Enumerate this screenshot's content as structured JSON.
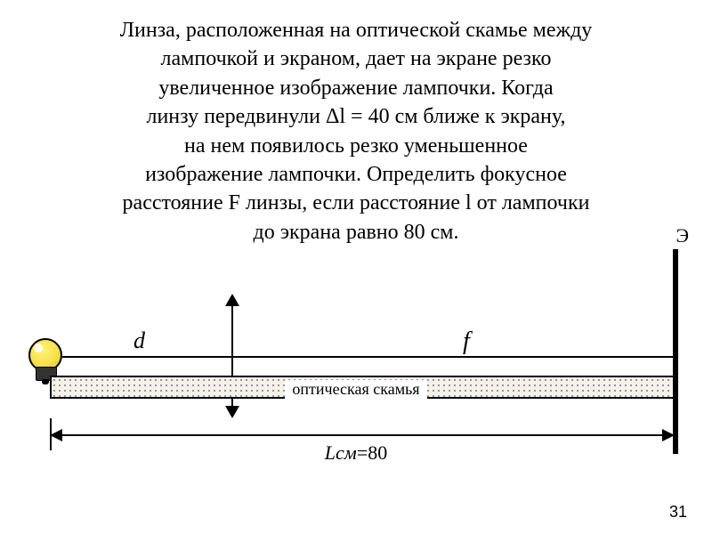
{
  "problem": {
    "lines": [
      "Линза, расположенная на оптической скамье между",
      "лампочкой и экраном, дает на экране резко",
      "увеличенное изображение лампочки. Когда",
      "линзу передвинули Δl = 40 см ближе к экрану,",
      "на нем появилось резко уменьшенное",
      "изображение лампочки. Определить фокусное",
      "расстояние F линзы, если расстояние l от лампочки",
      "до экрана равно 80 см."
    ]
  },
  "diagram": {
    "screen_label": "Э",
    "d_label": "d",
    "f_label": "f",
    "bench_label": "оптическая скамья",
    "bottom_dim_prefix": "L",
    "bottom_dim_value": "=80",
    "bottom_dim_unit": "см",
    "colors": {
      "stroke": "#000000",
      "bench_fill": "#f4f1ea",
      "bench_dot": "#777777",
      "bulb_glow": "#f5e04b",
      "background": "#ffffff"
    },
    "values": {
      "delta_l_cm": 40,
      "L_cm": 80
    }
  },
  "page_number": "31"
}
